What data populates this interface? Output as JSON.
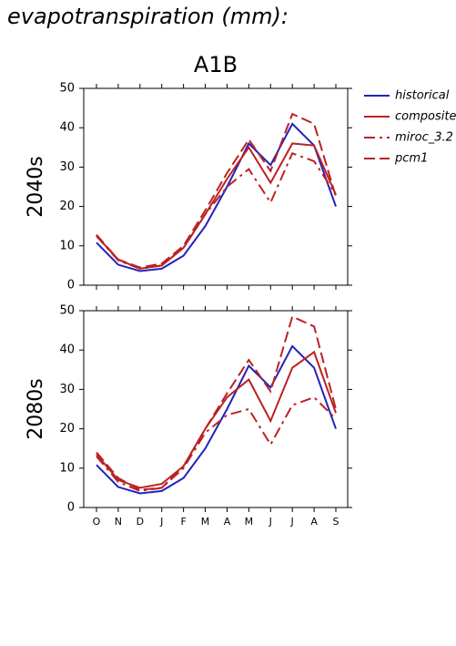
{
  "header": {
    "title": "evapotranspiration (mm):",
    "scenario": "A1B"
  },
  "chart_data": [
    {
      "type": "line",
      "ylabel": "2040s",
      "ylim": [
        0,
        50
      ],
      "yticks": [
        0,
        10,
        20,
        30,
        40,
        50
      ],
      "series": [
        {
          "name": "historical",
          "color": "#2222bb",
          "dash": "solid",
          "values": [
            10.8,
            5.2,
            3.6,
            4.2,
            7.5,
            15,
            25,
            36,
            30.5,
            41,
            35.5,
            20
          ]
        },
        {
          "name": "composite",
          "color": "#bb2222",
          "dash": "solid",
          "values": [
            12.5,
            6.5,
            4.2,
            5,
            9.5,
            18,
            27,
            35,
            26,
            36,
            35.5,
            23
          ]
        },
        {
          "name": "miroc_3.2",
          "color": "#bb2222",
          "dash": "dashdot",
          "values": [
            12.5,
            6.3,
            4.2,
            5,
            9.5,
            18,
            25,
            29.5,
            21,
            33.5,
            31.5,
            23
          ]
        },
        {
          "name": "pcm1",
          "color": "#bb2222",
          "dash": "dash",
          "values": [
            12.8,
            6.5,
            4.5,
            5.5,
            10,
            19,
            28.5,
            37,
            29,
            43.5,
            41,
            22.5
          ]
        }
      ]
    },
    {
      "type": "line",
      "ylabel": "2080s",
      "ylim": [
        0,
        50
      ],
      "yticks": [
        0,
        10,
        20,
        30,
        40,
        50
      ],
      "categories": [
        "O",
        "N",
        "D",
        "J",
        "F",
        "M",
        "A",
        "M",
        "J",
        "J",
        "A",
        "S"
      ],
      "series": [
        {
          "name": "historical",
          "color": "#2222bb",
          "dash": "solid",
          "values": [
            10.8,
            5.2,
            3.6,
            4.2,
            7.5,
            15,
            25,
            36,
            30.5,
            41,
            35.5,
            20
          ]
        },
        {
          "name": "composite",
          "color": "#bb2222",
          "dash": "solid",
          "values": [
            13.5,
            7,
            5,
            6,
            10.5,
            20,
            28,
            32.5,
            22,
            35.5,
            39.5,
            24
          ]
        },
        {
          "name": "miroc_3.2",
          "color": "#bb2222",
          "dash": "dashdot",
          "values": [
            13,
            6.5,
            4.2,
            5,
            10,
            19,
            23.5,
            25,
            16,
            26,
            28,
            22.5
          ]
        },
        {
          "name": "pcm1",
          "color": "#bb2222",
          "dash": "dash",
          "values": [
            14,
            7.5,
            4.5,
            5,
            10.5,
            20,
            29,
            37.5,
            29.5,
            48.5,
            46,
            25
          ]
        }
      ]
    }
  ]
}
